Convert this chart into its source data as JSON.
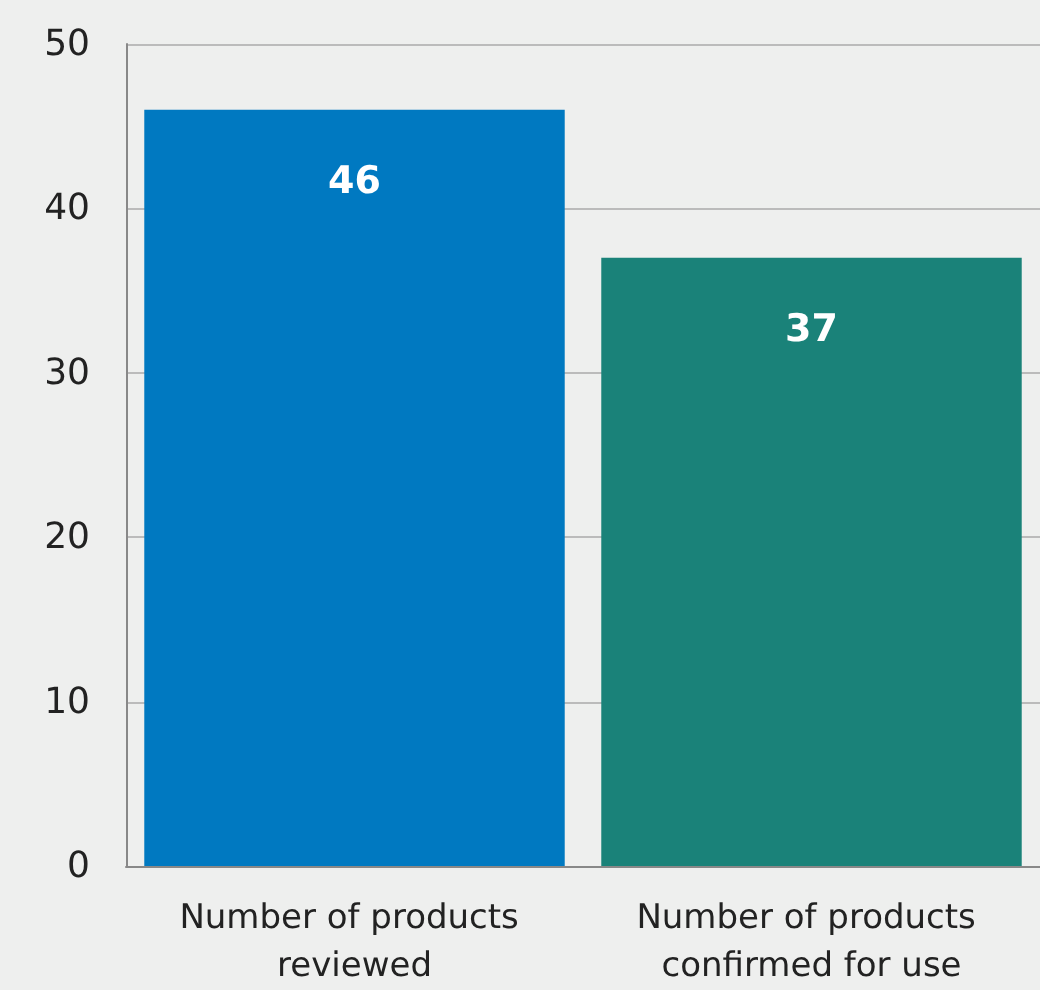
{
  "chart_data": {
    "type": "bar",
    "categories": [
      "Number of products reviewed",
      "Number of products confirmed for use"
    ],
    "values": [
      46,
      37
    ],
    "colors": [
      "#0079c1",
      "#1a8279"
    ],
    "ylim": [
      0,
      50
    ],
    "yticks": [
      0,
      10,
      20,
      30,
      40,
      50
    ],
    "grid": "y",
    "data_labels": true
  }
}
